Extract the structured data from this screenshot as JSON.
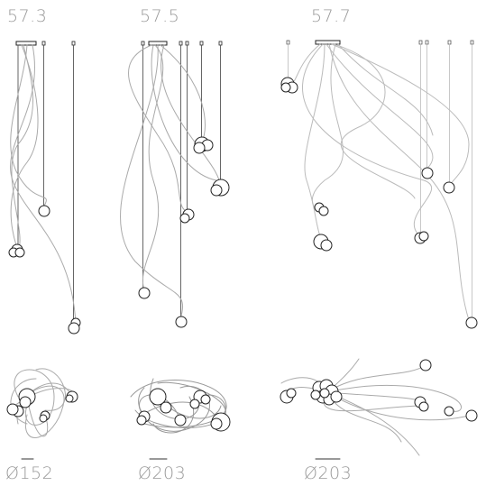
{
  "models": [
    {
      "code": "57.3",
      "diameter": "Ø152"
    },
    {
      "code": "57.5",
      "diameter": "Ø203"
    },
    {
      "code": "57.7",
      "diameter": "Ø203"
    }
  ]
}
